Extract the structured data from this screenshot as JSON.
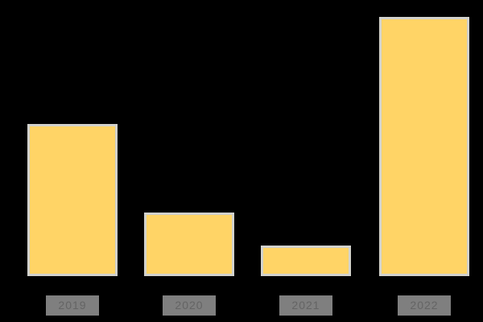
{
  "chart_data": {
    "type": "bar",
    "categories": [
      "2019",
      "2020",
      "2021",
      "2022"
    ],
    "values": [
      58,
      23,
      10,
      100
    ],
    "title": "",
    "xlabel": "",
    "ylabel": "",
    "ylim": [
      0,
      100
    ],
    "grid": false,
    "legend": "none",
    "axes_visible": false,
    "colors": {
      "background": "#000000",
      "bar_fill": "#FFD466",
      "bar_border": "#D2D2CD",
      "tick_label_background": "#7F7F7F",
      "tick_label_text": "#646464"
    }
  }
}
